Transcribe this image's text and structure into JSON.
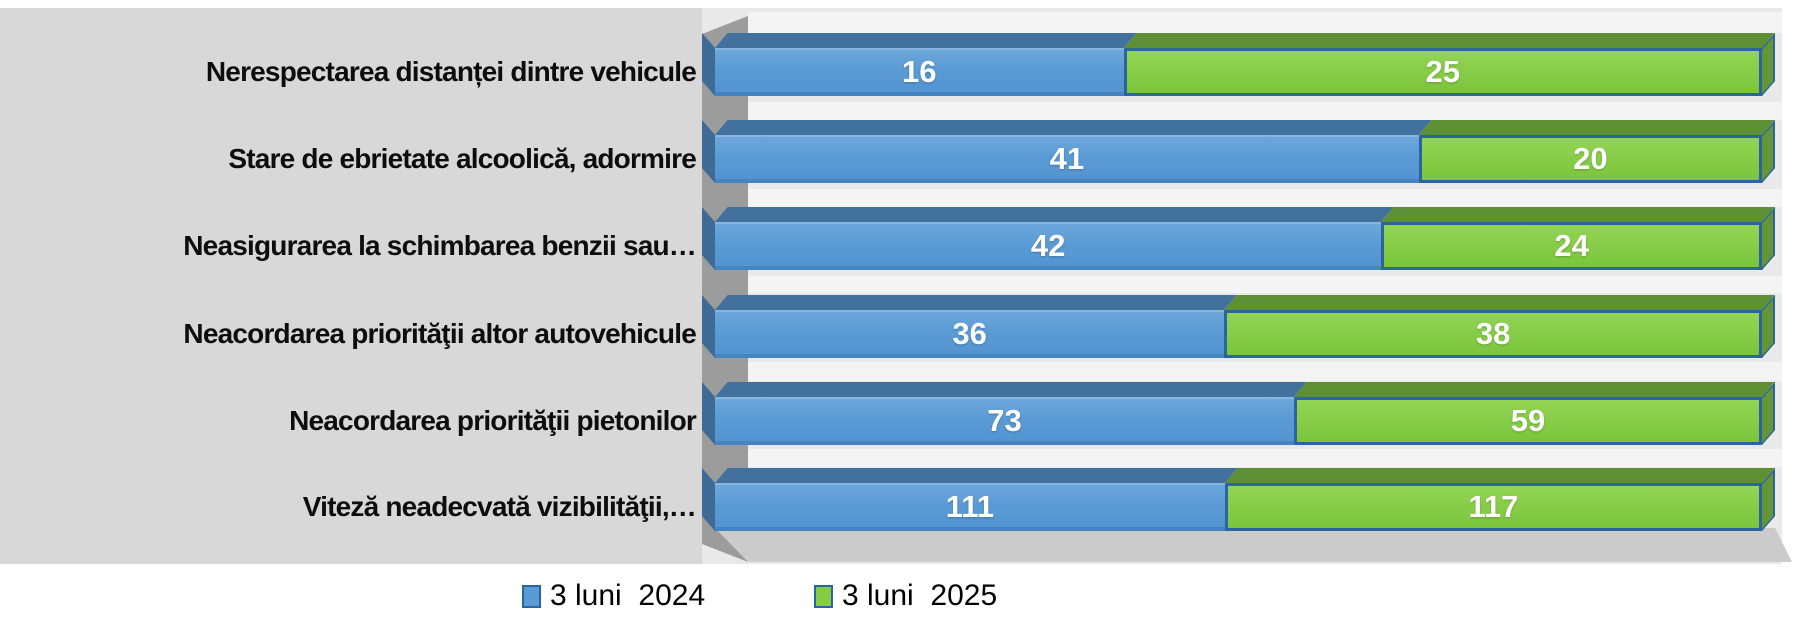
{
  "chart_data": {
    "type": "bar",
    "variant": "horizontal-100%-stacked-3d",
    "categories": [
      "Nerespectarea distanței dintre vehicule",
      "Stare de ebrietate alcoolică, adormire",
      "Neasigurarea la schimbarea benzii sau…",
      "Neacordarea priorităţii altor autovehicule",
      "Neacordarea priorităţii pietonilor",
      "Viteză neadecvată vizibilităţii,…"
    ],
    "series": [
      {
        "name": "3 luni  2024",
        "color": "#5b9bd5",
        "values": [
          16,
          41,
          42,
          36,
          73,
          111
        ]
      },
      {
        "name": "3 luni  2025",
        "color": "#86cc47",
        "values": [
          25,
          20,
          24,
          38,
          59,
          117
        ]
      }
    ],
    "title": "",
    "xlabel": "",
    "ylabel": "",
    "legend_position": "bottom",
    "grid": false,
    "value_label_color": "#ffffff",
    "segment_border_color": "#2a65a0"
  }
}
